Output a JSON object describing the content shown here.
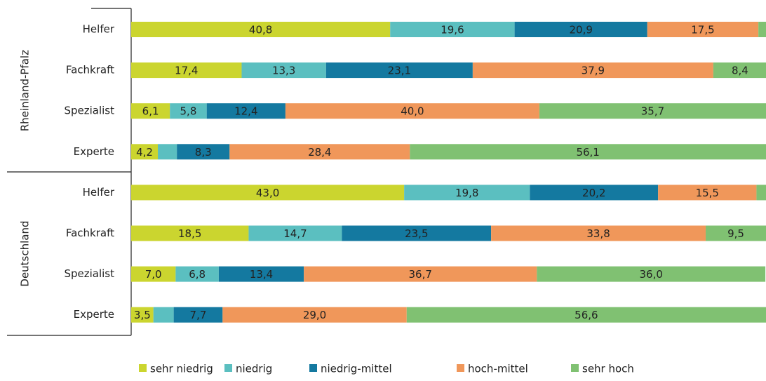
{
  "chart_data": {
    "type": "stacked-bar-horizontal",
    "groups": [
      {
        "name": "Rheinland-Pfalz",
        "categories": [
          "Helfer",
          "Fachkraft",
          "Spezialist",
          "Experte"
        ]
      },
      {
        "name": "Deutschland",
        "categories": [
          "Helfer",
          "Fachkraft",
          "Spezialist",
          "Experte"
        ]
      }
    ],
    "xlim": [
      0,
      100
    ],
    "legend": "bottom",
    "series": [
      {
        "name": "sehr niedrig",
        "color": "#cbd52f",
        "values": [
          40.8,
          17.4,
          6.1,
          4.2,
          43.0,
          18.5,
          7.0,
          3.5
        ],
        "value_labels": [
          "40,8",
          "17,4",
          "6,1",
          "4,2",
          "43,0",
          "18,5",
          "7,0",
          "3,5"
        ]
      },
      {
        "name": "niedrig",
        "color": "#5bbfc0",
        "values": [
          19.6,
          13.3,
          5.8,
          3.0,
          19.8,
          14.7,
          6.8,
          3.2
        ],
        "value_labels": [
          "19,6",
          "13,3",
          "5,8",
          null,
          "19,8",
          "14,7",
          "6,8",
          null
        ]
      },
      {
        "name": "niedrig-mittel",
        "color": "#1479a0",
        "values": [
          20.9,
          23.1,
          12.4,
          8.3,
          20.2,
          23.5,
          13.4,
          7.7
        ],
        "value_labels": [
          "20,9",
          "23,1",
          "12,4",
          "8,3",
          "20,2",
          "23,5",
          "13,4",
          "7,7"
        ]
      },
      {
        "name": "hoch-mittel",
        "color": "#f0975a",
        "values": [
          17.5,
          37.9,
          40.0,
          28.4,
          15.5,
          33.8,
          36.7,
          29.0
        ],
        "value_labels": [
          "17,5",
          "37,9",
          "40,0",
          "28,4",
          "15,5",
          "33,8",
          "36,7",
          "29,0"
        ]
      },
      {
        "name": "sehr hoch",
        "color": "#80c172",
        "values": [
          1.2,
          8.4,
          35.7,
          56.1,
          1.5,
          9.5,
          36.0,
          56.6
        ],
        "value_labels": [
          null,
          "8,4",
          "35,7",
          "56,1",
          null,
          "9,5",
          "36,0",
          "56,6"
        ]
      }
    ]
  }
}
